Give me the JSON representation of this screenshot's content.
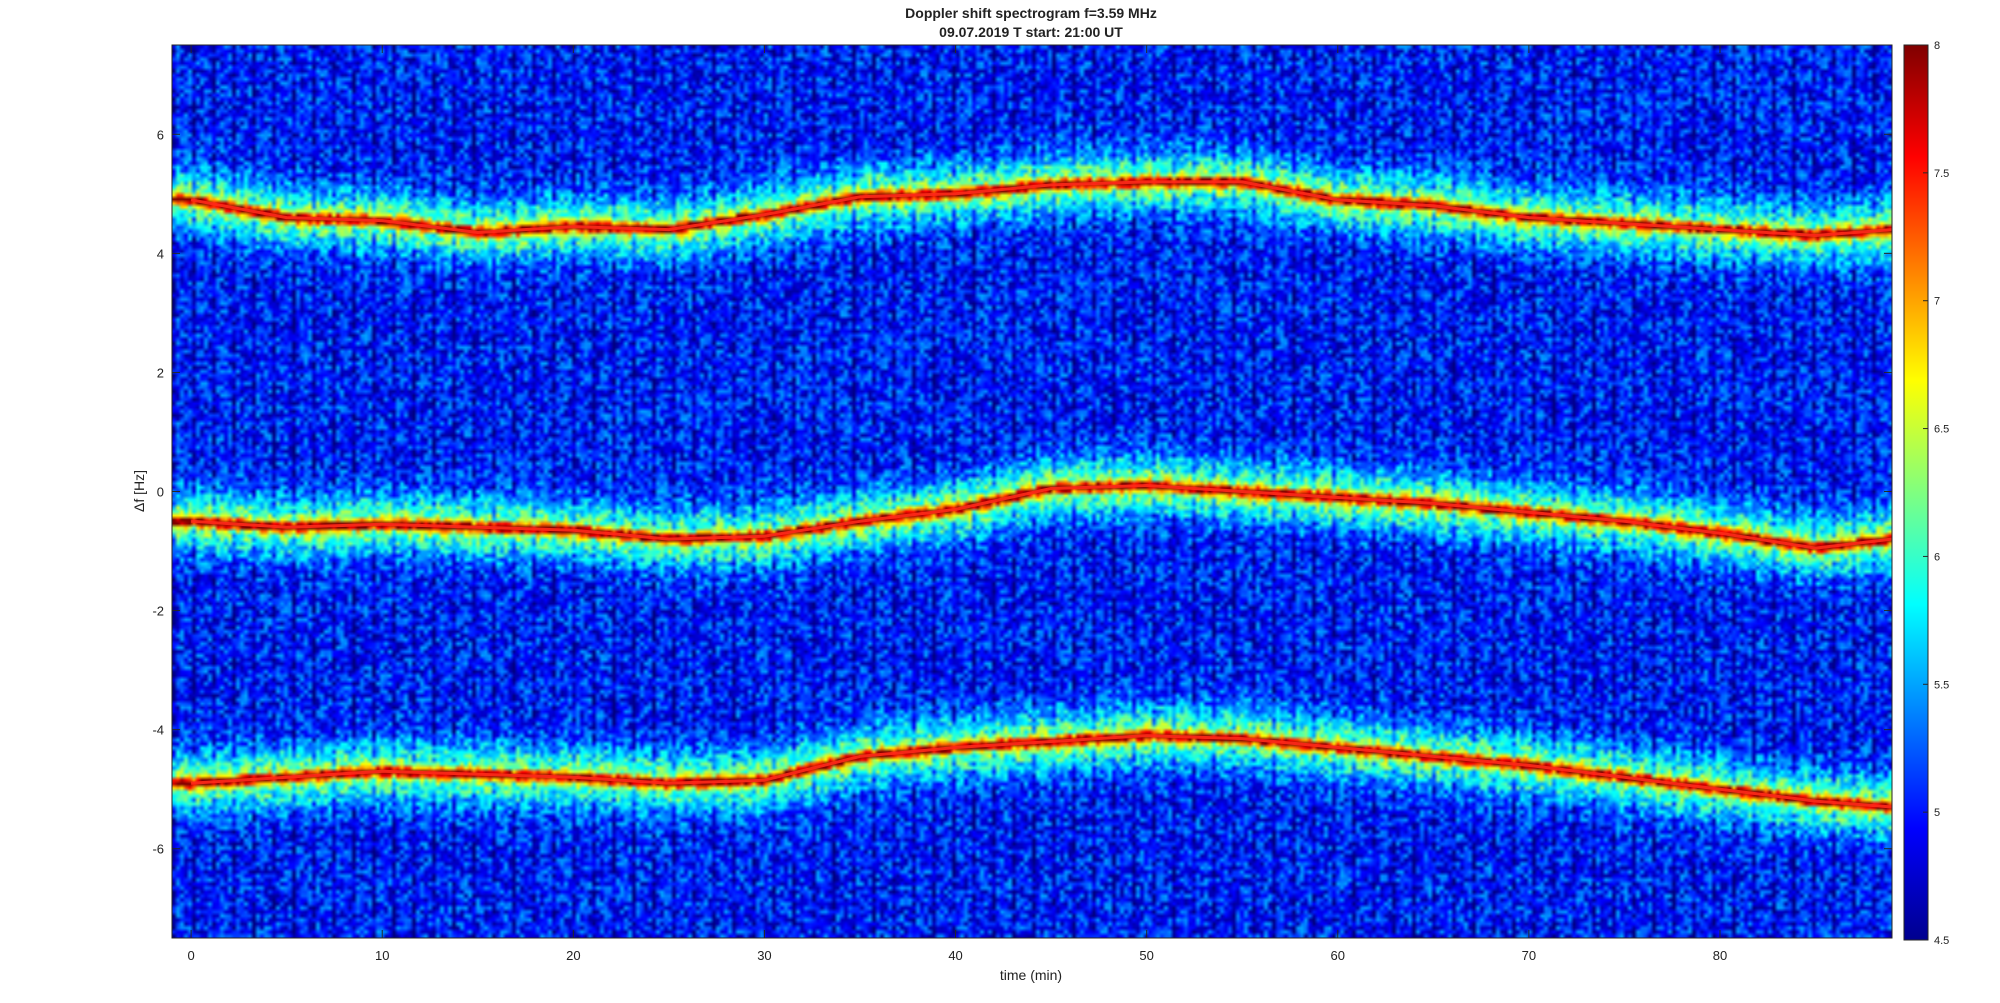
{
  "chart_data": {
    "type": "heatmap",
    "title": "Doppler shift spectrogram f=3.59 MHz",
    "subtitle": "09.07.2019   T start: 21:00 UT",
    "xlabel": "time (min)",
    "ylabel": "Δf [Hz]",
    "xlim": [
      -1,
      89
    ],
    "ylim": [
      -7.5,
      7.5
    ],
    "x_ticks": [
      0,
      10,
      20,
      30,
      40,
      50,
      60,
      70,
      80
    ],
    "x_tick_labels": [
      "0",
      "10",
      "20",
      "30",
      "40",
      "50",
      "60",
      "70",
      "80"
    ],
    "y_ticks": [
      6,
      4,
      2,
      0,
      -2,
      -4,
      -6
    ],
    "y_tick_labels": [
      "6",
      "4",
      "2",
      "0",
      "-2",
      "-4",
      "-6"
    ],
    "colormap": "jet",
    "clim": [
      4.5,
      8
    ],
    "colorbar_ticks": [
      8,
      7.5,
      7,
      6.5,
      6,
      5.5,
      5,
      4.5
    ],
    "colorbar_tick_labels": [
      "8",
      "7.5",
      "7",
      "6.5",
      "6",
      "5.5",
      "5",
      "4.5"
    ],
    "grid": false,
    "traces": [
      {
        "x": [
          0,
          5,
          10,
          15,
          20,
          25,
          30,
          35,
          40,
          45,
          50,
          55,
          60,
          65,
          70,
          75,
          80,
          85,
          89
        ],
        "y": [
          4.9,
          4.6,
          4.55,
          4.35,
          4.45,
          4.4,
          4.65,
          4.95,
          5.0,
          5.15,
          5.2,
          5.2,
          4.9,
          4.8,
          4.6,
          4.5,
          4.4,
          4.3,
          4.4
        ]
      },
      {
        "x": [
          0,
          5,
          10,
          15,
          20,
          25,
          30,
          35,
          40,
          45,
          50,
          55,
          60,
          65,
          70,
          75,
          80,
          85,
          89
        ],
        "y": [
          -0.5,
          -0.6,
          -0.55,
          -0.6,
          -0.65,
          -0.8,
          -0.75,
          -0.5,
          -0.3,
          0.05,
          0.1,
          0.0,
          -0.1,
          -0.2,
          -0.35,
          -0.5,
          -0.7,
          -0.95,
          -0.8
        ]
      },
      {
        "x": [
          0,
          5,
          10,
          15,
          20,
          25,
          30,
          35,
          40,
          45,
          50,
          55,
          60,
          65,
          70,
          75,
          80,
          85,
          89
        ],
        "y": [
          -4.9,
          -4.8,
          -4.7,
          -4.75,
          -4.8,
          -4.9,
          -4.85,
          -4.45,
          -4.3,
          -4.2,
          -4.1,
          -4.15,
          -4.3,
          -4.45,
          -4.6,
          -4.8,
          -5.0,
          -5.2,
          -5.3
        ]
      }
    ]
  }
}
